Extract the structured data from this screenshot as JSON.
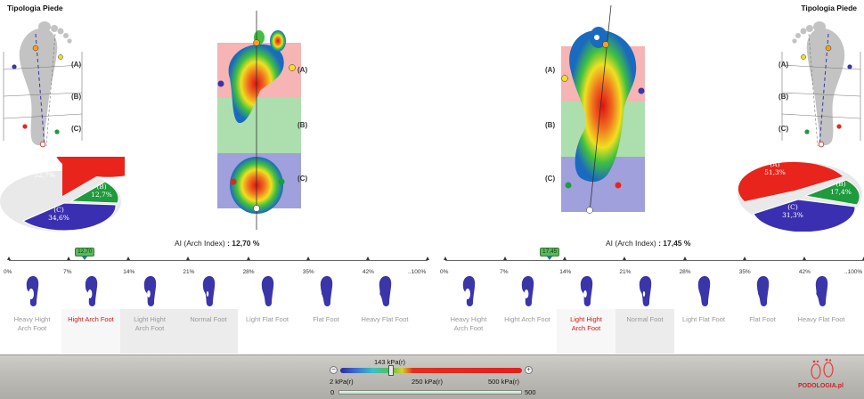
{
  "left_panel": {
    "title": "Tipologia Piede",
    "zones": [
      "(A)",
      "(B)",
      "(C)"
    ],
    "pie": {
      "type": "pie",
      "slices": [
        {
          "label": "(A)",
          "value_text": "52,7%",
          "value": 52.7,
          "color": "#e8241c"
        },
        {
          "label": "(B)",
          "value_text": "12,7%",
          "value": 12.7,
          "color": "#1f9a3c"
        },
        {
          "label": "(C)",
          "value_text": "34,6%",
          "value": 34.6,
          "color": "#3a2fb0"
        }
      ]
    },
    "arch_index_label": "AI (Arch Index)",
    "arch_index_value": ": 12,70 %",
    "marker_value": "12,70"
  },
  "right_panel": {
    "title": "Tipologia Piede",
    "zones": [
      "(A)",
      "(B)",
      "(C)"
    ],
    "pie": {
      "type": "pie",
      "slices": [
        {
          "label": "(A)",
          "value_text": "51,3%",
          "value": 51.3,
          "color": "#e8241c"
        },
        {
          "label": "(B)",
          "value_text": "17,4%",
          "value": 17.4,
          "color": "#1f9a3c"
        },
        {
          "label": "(C)",
          "value_text": "31,3%",
          "value": 31.3,
          "color": "#3a2fb0"
        }
      ]
    },
    "arch_index_label": "AI (Arch Index)",
    "arch_index_value": ": 17,45 %",
    "marker_value": "17,45"
  },
  "scale": {
    "ticks": [
      "0%",
      "7%",
      "14%",
      "21%",
      "28%",
      "35%",
      "42%",
      "..100%"
    ],
    "left_active_index": 1,
    "right_active_index": 2,
    "left_marker_fraction": 0.1814,
    "right_marker_fraction": 0.2493
  },
  "categories": [
    {
      "line1": "Heavy Hight",
      "line2": "Arch Foot"
    },
    {
      "line1": "Hight Arch Foot",
      "line2": ""
    },
    {
      "line1": "Light Hight",
      "line2": "Arch Foot"
    },
    {
      "line1": "Normal Foot",
      "line2": ""
    },
    {
      "line1": "Light Flat Foot",
      "line2": ""
    },
    {
      "line1": "Flat Foot",
      "line2": ""
    },
    {
      "line1": "Heavy Flat Foot",
      "line2": ""
    }
  ],
  "pressure_control": {
    "current": "143 kPa(r)",
    "min_label": "2 kPa(r)",
    "mid_label": "250 kPa(r)",
    "max_label": "500 kPa(r)",
    "range_min": "0",
    "range_max": "500",
    "minus": "−",
    "plus": "+"
  },
  "brand": "PODOLOGIA.pl",
  "colors": {
    "zone_a": "#f4a7a7",
    "zone_b": "#9fd8a0",
    "zone_c": "#8f8fd6",
    "foot_icon": "#3a35a8",
    "active_label": "#cc1d1d"
  }
}
